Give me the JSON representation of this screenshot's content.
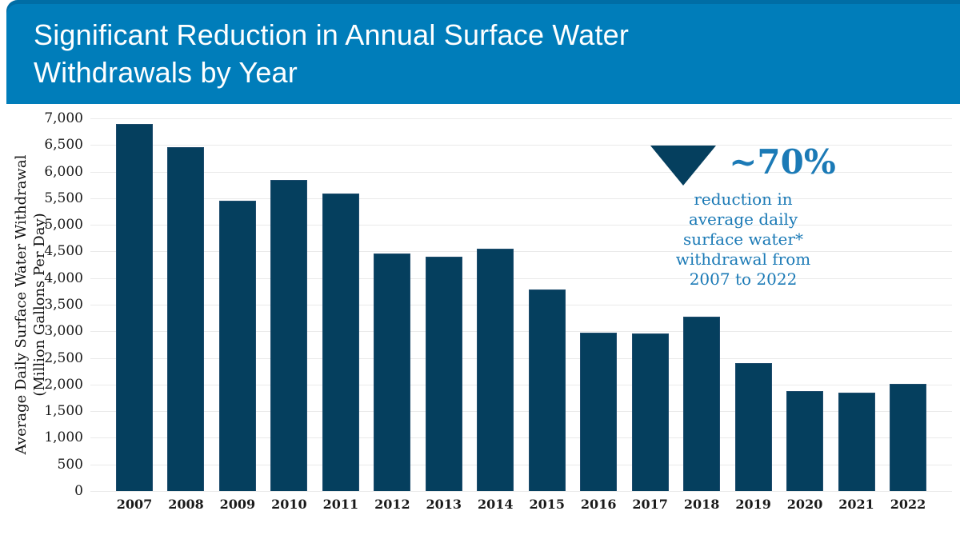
{
  "header": {
    "title_line1": "Significant Reduction in Annual Surface Water",
    "title_line2": "Withdrawals by Year",
    "background": "#007DBA",
    "text_color": "#FFFFFF"
  },
  "chart_data": {
    "type": "bar",
    "title": "Significant Reduction in Annual Surface Water Withdrawals by Year",
    "categories": [
      "2007",
      "2008",
      "2009",
      "2010",
      "2011",
      "2012",
      "2013",
      "2014",
      "2015",
      "2016",
      "2017",
      "2018",
      "2019",
      "2020",
      "2021",
      "2022"
    ],
    "values": [
      6900,
      6460,
      5460,
      5850,
      5590,
      4460,
      4400,
      4550,
      3780,
      2980,
      2960,
      3270,
      2410,
      1880,
      1850,
      2020
    ],
    "ylabel_line1": "Average Daily Surface Water Withdrawal",
    "ylabel_line2": "(Million Gallons Per Day)",
    "xlabel": "",
    "ylim": [
      0,
      7000
    ],
    "ytick_step": 500,
    "yticks": [
      "7,000",
      "6,500",
      "6,000",
      "5,500",
      "5,000",
      "4,500",
      "4,000",
      "3,500",
      "3,000",
      "2,500",
      "2,000",
      "1,500",
      "1,000",
      "500",
      "0"
    ],
    "grid": "horizontal",
    "legend": "none",
    "bar_color": "#053F5E",
    "gridline_color": "#EAEAEA"
  },
  "annotation": {
    "icon": "down-triangle-icon",
    "headline": "~70%",
    "lines": [
      "reduction in",
      "average daily",
      "surface water*",
      "withdrawal from",
      "2007 to 2022"
    ],
    "text_color": "#1B7AB6",
    "triangle_color": "#053F5E"
  }
}
